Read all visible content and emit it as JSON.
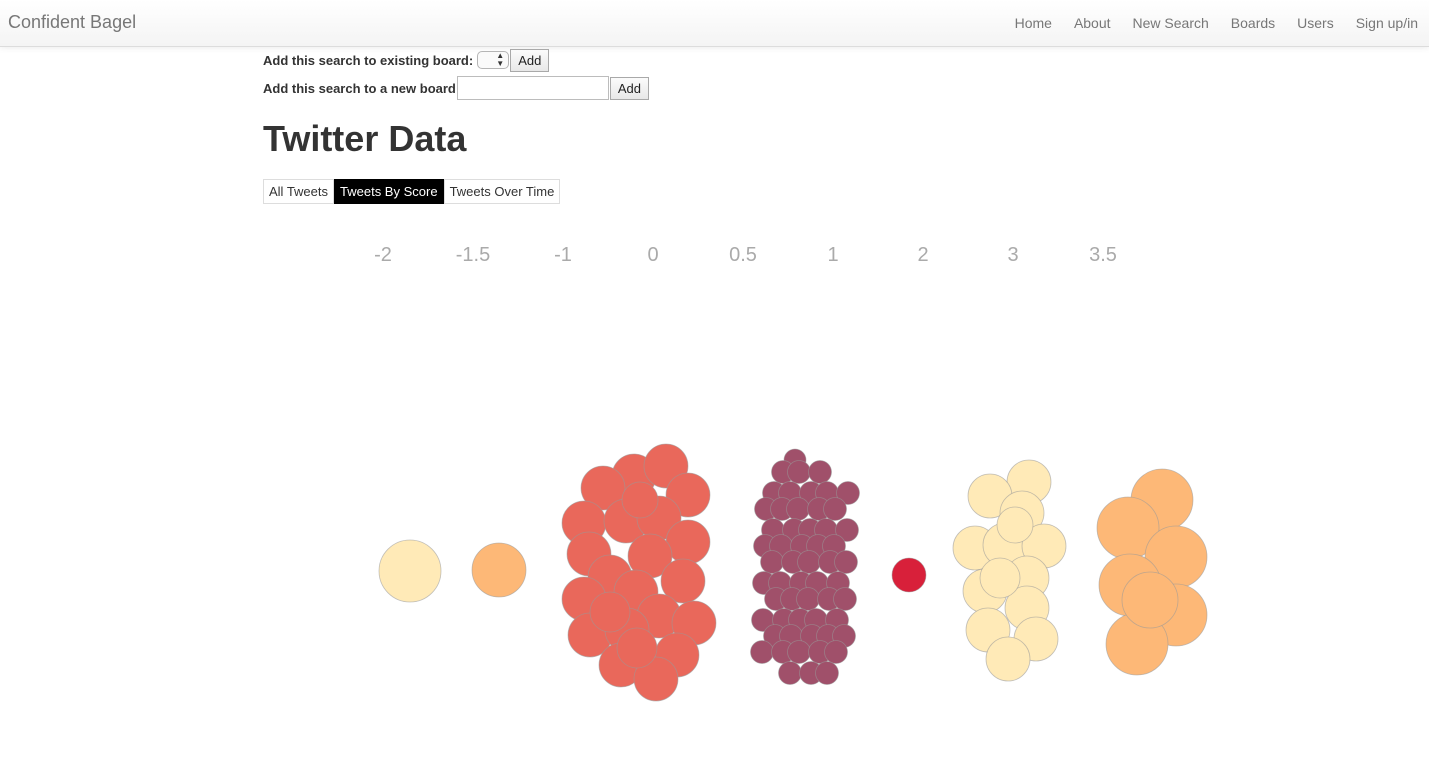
{
  "navbar": {
    "brand": "Confident Bagel",
    "links": [
      "Home",
      "About",
      "New Search",
      "Boards",
      "Users",
      "Sign up/in"
    ]
  },
  "board_form": {
    "existing_label": "Add this search to existing board:",
    "existing_add": "Add",
    "new_label": "Add this search to a new board",
    "new_value": "",
    "new_add": "Add"
  },
  "page_title": "Twitter Data",
  "tabs": [
    {
      "label": "All Tweets",
      "active": false
    },
    {
      "label": "Tweets By Score",
      "active": true
    },
    {
      "label": "Tweets Over Time",
      "active": false
    }
  ],
  "chart_data": {
    "type": "scatter",
    "title": "",
    "categories": [
      "-2",
      "-1.5",
      "-1",
      "0",
      "0.5",
      "1",
      "2",
      "3",
      "3.5"
    ],
    "groups": [
      {
        "score": "-2",
        "count": 1,
        "color": "#ffeab7"
      },
      {
        "score": "-1.5",
        "count": 1,
        "color": "#fdb877"
      },
      {
        "score": "-1",
        "count": 0,
        "color": "#e9685b"
      },
      {
        "score": "0",
        "count": 24,
        "color": "#e9685b"
      },
      {
        "score": "0.5",
        "count": 0,
        "color": "#a0506a"
      },
      {
        "score": "1",
        "count": 62,
        "color": "#a0506a"
      },
      {
        "score": "2",
        "count": 1,
        "color": "#d8203a"
      },
      {
        "score": "3",
        "count": 14,
        "color": "#ffeab7"
      },
      {
        "score": "3.5",
        "count": 7,
        "color": "#fdb877"
      }
    ],
    "grid": false,
    "legend": "none"
  }
}
